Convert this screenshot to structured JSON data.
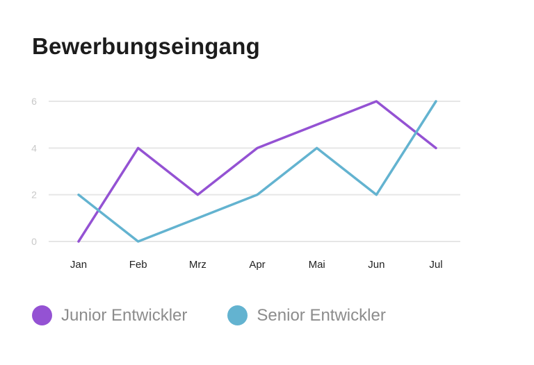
{
  "title": "Bewerbungseingang",
  "chart_data": {
    "type": "line",
    "title": "Bewerbungseingang",
    "xlabel": "",
    "ylabel": "",
    "categories": [
      "Jan",
      "Feb",
      "Mrz",
      "Apr",
      "Mai",
      "Jun",
      "Jul"
    ],
    "ylim": [
      0,
      6
    ],
    "yticks": [
      0,
      2,
      4,
      6
    ],
    "grid": true,
    "legend_position": "bottom-left",
    "series": [
      {
        "name": "Junior Entwickler",
        "color": "#9452d3",
        "values": [
          0,
          4,
          2,
          4,
          5,
          6,
          4
        ]
      },
      {
        "name": "Senior Entwickler",
        "color": "#63b3d0",
        "values": [
          2,
          0,
          1,
          2,
          4,
          2,
          6
        ]
      }
    ]
  }
}
